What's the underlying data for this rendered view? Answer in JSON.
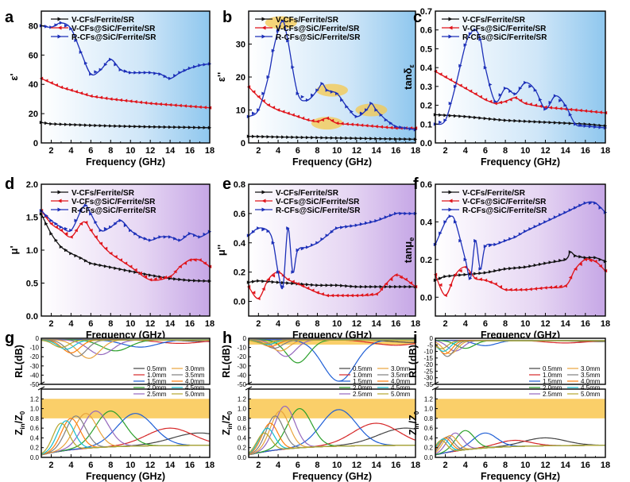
{
  "legend_sets": {
    "main": [
      "V-CFs/Ferrite/SR",
      "V-CFs@SiC/Ferrite/SR",
      "R-CFs@SiC/Ferrite/SR"
    ],
    "thickness_left": [
      "0.5mm",
      "1.0mm",
      "1.5mm",
      "2.0mm",
      "2.5mm"
    ],
    "thickness_right": [
      "3.0mm",
      "3.5mm",
      "4.0mm",
      "4.5mm",
      "5.0mm"
    ]
  },
  "colors": {
    "series": [
      "#111111",
      "#e0141b",
      "#1c2fb8"
    ],
    "thickness": [
      "#444444",
      "#d62728",
      "#1f5fd6",
      "#2ca02c",
      "#9467bd",
      "#e8a33d",
      "#7f7f7f",
      "#ff7f0e",
      "#17becf",
      "#b5a62e"
    ],
    "band": "#f9c74f"
  },
  "chart_data": [
    {
      "panel": "a",
      "type": "line",
      "xlabel": "Frequency (GHz)",
      "ylabel": "ε'",
      "xlim": [
        1,
        18
      ],
      "ylim": [
        0,
        90
      ],
      "xticks": [
        2,
        4,
        6,
        8,
        10,
        12,
        14,
        16,
        18
      ],
      "yticks": [
        0,
        20,
        40,
        60,
        80
      ],
      "background": "blue",
      "series": [
        {
          "name": "V-CFs/Ferrite/SR",
          "x": [
            1,
            2,
            4,
            6,
            8,
            10,
            12,
            14,
            16,
            18
          ],
          "y": [
            14,
            13,
            12.5,
            12,
            11.6,
            11.3,
            11,
            10.8,
            10.6,
            10.4
          ]
        },
        {
          "name": "V-CFs@SiC/Ferrite/SR",
          "x": [
            1,
            2,
            3,
            4,
            5,
            6,
            8,
            10,
            12,
            14,
            16,
            18
          ],
          "y": [
            44,
            41,
            38,
            36,
            34,
            32,
            30,
            28.5,
            27,
            26,
            25,
            24
          ]
        },
        {
          "name": "R-CFs@SiC/Ferrite/SR",
          "x": [
            1,
            2,
            3,
            4,
            5,
            6,
            7,
            8,
            9,
            10,
            11,
            12,
            13,
            14,
            15,
            16,
            17,
            18
          ],
          "y": [
            80,
            79,
            82,
            78,
            62,
            47,
            50,
            57,
            50,
            48,
            48,
            48,
            47,
            44,
            48,
            51,
            53,
            54
          ]
        }
      ]
    },
    {
      "panel": "b",
      "type": "line",
      "xlabel": "Frequency (GHz)",
      "ylabel": "ε''",
      "xlim": [
        1,
        18
      ],
      "ylim": [
        0,
        40
      ],
      "xticks": [
        2,
        4,
        6,
        8,
        10,
        12,
        14,
        16,
        18
      ],
      "yticks": [
        0,
        10,
        20,
        30
      ],
      "background": "blue",
      "series": [
        {
          "name": "V-CFs/Ferrite/SR",
          "x": [
            1,
            4,
            8,
            12,
            16,
            18
          ],
          "y": [
            2,
            1.8,
            1.6,
            1.4,
            1.2,
            1.1
          ]
        },
        {
          "name": "V-CFs@SiC/Ferrite/SR",
          "x": [
            1,
            2,
            3,
            4,
            5,
            6,
            7,
            8,
            9,
            10,
            12,
            14,
            16,
            18
          ],
          "y": [
            17,
            14,
            11.5,
            10,
            9,
            8,
            7,
            6.5,
            7.5,
            6,
            5.5,
            5,
            4.5,
            4.5
          ]
        },
        {
          "name": "R-CFs@SiC/Ferrite/SR",
          "x": [
            1,
            2,
            3,
            3.5,
            4,
            4.5,
            5,
            6,
            7,
            8,
            8.5,
            9,
            10,
            11,
            12,
            13,
            13.5,
            14,
            15,
            16,
            17,
            18
          ],
          "y": [
            8,
            10,
            20,
            28,
            34,
            37,
            31,
            15,
            13,
            16,
            18,
            16,
            15,
            11,
            8,
            10,
            12,
            10,
            7,
            5,
            4.5,
            4
          ]
        }
      ],
      "highlights": [
        [
          4.3,
          36.5
        ],
        [
          9.5,
          16
        ],
        [
          13.5,
          10
        ],
        [
          9,
          6
        ]
      ]
    },
    {
      "panel": "c",
      "type": "line",
      "xlabel": "Frequency (GHz)",
      "ylabel": "tanδε",
      "xlim": [
        1,
        18
      ],
      "ylim": [
        0,
        0.7
      ],
      "xticks": [
        2,
        4,
        6,
        8,
        10,
        12,
        14,
        16,
        18
      ],
      "yticks": [
        0,
        0.1,
        0.2,
        0.3,
        0.4,
        0.5,
        0.6,
        0.7
      ],
      "background": "blue",
      "series": [
        {
          "name": "V-CFs/Ferrite/SR",
          "x": [
            1,
            4,
            8,
            12,
            16,
            18
          ],
          "y": [
            0.15,
            0.14,
            0.12,
            0.11,
            0.1,
            0.09
          ]
        },
        {
          "name": "V-CFs@SiC/Ferrite/SR",
          "x": [
            1,
            2,
            3,
            4,
            5,
            6,
            7,
            8,
            9,
            10,
            12,
            14,
            16,
            18
          ],
          "y": [
            0.38,
            0.35,
            0.32,
            0.29,
            0.26,
            0.23,
            0.21,
            0.22,
            0.24,
            0.21,
            0.19,
            0.18,
            0.17,
            0.16
          ]
        },
        {
          "name": "R-CFs@SiC/Ferrite/SR",
          "x": [
            1,
            2,
            3,
            4,
            4.5,
            5,
            5.5,
            6,
            7,
            8,
            9,
            10,
            11,
            12,
            13,
            14,
            15,
            16,
            18
          ],
          "y": [
            0.1,
            0.12,
            0.3,
            0.52,
            0.58,
            0.6,
            0.55,
            0.4,
            0.22,
            0.29,
            0.26,
            0.32,
            0.28,
            0.18,
            0.25,
            0.2,
            0.1,
            0.09,
            0.08
          ]
        }
      ]
    },
    {
      "panel": "d",
      "type": "line",
      "xlabel": "Frequency (GHz)",
      "ylabel": "μ'",
      "xlim": [
        1,
        18
      ],
      "ylim": [
        0,
        2
      ],
      "xticks": [
        2,
        4,
        6,
        8,
        10,
        12,
        14,
        16,
        18
      ],
      "yticks": [
        0,
        0.5,
        1,
        1.5,
        2
      ],
      "background": "purple",
      "series": [
        {
          "name": "V-CFs/Ferrite/SR",
          "x": [
            1,
            2,
            3,
            4,
            5,
            6,
            8,
            10,
            12,
            14,
            16,
            18
          ],
          "y": [
            1.55,
            1.25,
            1.05,
            0.95,
            0.88,
            0.8,
            0.74,
            0.68,
            0.62,
            0.57,
            0.54,
            0.53
          ]
        },
        {
          "name": "V-CFs@SiC/Ferrite/SR",
          "x": [
            1,
            2,
            3,
            4,
            5,
            5.5,
            6,
            7,
            8,
            10,
            12,
            14,
            15,
            16,
            17,
            18
          ],
          "y": [
            1.6,
            1.4,
            1.3,
            1.2,
            1.4,
            1.42,
            1.3,
            1.1,
            0.95,
            0.75,
            0.55,
            0.6,
            0.75,
            0.85,
            0.85,
            0.75
          ]
        },
        {
          "name": "R-CFs@SiC/Ferrite/SR",
          "x": [
            1,
            2,
            3,
            4,
            5,
            5.5,
            6,
            7,
            8,
            9,
            10,
            11,
            12,
            13,
            14,
            15,
            16,
            17,
            18
          ],
          "y": [
            1.6,
            1.45,
            1.35,
            1.3,
            1.6,
            1.68,
            1.55,
            1.3,
            1.35,
            1.45,
            1.3,
            1.2,
            1.15,
            1.2,
            1.2,
            1.15,
            1.25,
            1.2,
            1.28
          ]
        }
      ]
    },
    {
      "panel": "e",
      "type": "line",
      "xlabel": "Frequency (GHz)",
      "ylabel": "μ''",
      "xlim": [
        1,
        18
      ],
      "ylim": [
        -0.1,
        0.8
      ],
      "xticks": [
        2,
        4,
        6,
        8,
        10,
        12,
        14,
        16,
        18
      ],
      "yticks": [
        0,
        0.2,
        0.4,
        0.6,
        0.8
      ],
      "background": "purple",
      "series": [
        {
          "name": "V-CFs/Ferrite/SR",
          "x": [
            1,
            2,
            4,
            6,
            8,
            10,
            12,
            14,
            16,
            18
          ],
          "y": [
            0.13,
            0.14,
            0.13,
            0.12,
            0.11,
            0.11,
            0.1,
            0.1,
            0.1,
            0.1
          ]
        },
        {
          "name": "V-CFs@SiC/Ferrite/SR",
          "x": [
            1,
            2,
            3,
            4,
            5,
            6,
            7,
            8,
            9,
            10,
            12,
            14,
            15,
            16,
            17,
            18
          ],
          "y": [
            0.1,
            0.02,
            0.15,
            0.2,
            0.15,
            0.12,
            0.09,
            0.06,
            0.04,
            0.04,
            0.04,
            0.05,
            0.12,
            0.18,
            0.15,
            0.1
          ]
        },
        {
          "name": "R-CFs@SiC/Ferrite/SR",
          "x": [
            1,
            2,
            3,
            3.5,
            4,
            4.5,
            5,
            5.5,
            6,
            7,
            8,
            9,
            10,
            12,
            14,
            16,
            17,
            18
          ],
          "y": [
            0.45,
            0.5,
            0.48,
            0.4,
            0.2,
            0.1,
            0.5,
            0.2,
            0.35,
            0.37,
            0.4,
            0.45,
            0.5,
            0.52,
            0.55,
            0.6,
            0.6,
            0.6
          ]
        }
      ]
    },
    {
      "panel": "f",
      "type": "line",
      "xlabel": "Frequency (GHz)",
      "ylabel": "tanδμ",
      "xlim": [
        1,
        18
      ],
      "ylim": [
        -0.1,
        0.6
      ],
      "xticks": [
        2,
        4,
        6,
        8,
        10,
        12,
        14,
        16,
        18
      ],
      "yticks": [
        0,
        0.2,
        0.4,
        0.6
      ],
      "background": "purple",
      "series": [
        {
          "name": "V-CFs/Ferrite/SR",
          "x": [
            1,
            2,
            4,
            6,
            8,
            10,
            12,
            14,
            14.5,
            15,
            16,
            17,
            18
          ],
          "y": [
            0.09,
            0.11,
            0.12,
            0.13,
            0.15,
            0.16,
            0.18,
            0.2,
            0.24,
            0.22,
            0.21,
            0.21,
            0.19
          ]
        },
        {
          "name": "V-CFs@SiC/Ferrite/SR",
          "x": [
            1,
            2,
            3,
            4,
            5,
            6,
            7,
            8,
            10,
            12,
            14,
            15,
            16,
            17,
            18
          ],
          "y": [
            0.12,
            0.01,
            0.12,
            0.16,
            0.1,
            0.09,
            0.07,
            0.04,
            0.04,
            0.05,
            0.06,
            0.15,
            0.2,
            0.19,
            0.14
          ]
        },
        {
          "name": "R-CFs@SiC/Ferrite/SR",
          "x": [
            1,
            2,
            2.5,
            3,
            4,
            4.5,
            5,
            5.5,
            6,
            7,
            8,
            9,
            10,
            12,
            14,
            16,
            17,
            18
          ],
          "y": [
            0.28,
            0.4,
            0.43,
            0.4,
            0.2,
            0.1,
            0.3,
            0.15,
            0.27,
            0.28,
            0.3,
            0.32,
            0.35,
            0.4,
            0.45,
            0.5,
            0.5,
            0.45
          ]
        }
      ]
    },
    {
      "panel": "g",
      "type": "line",
      "xlabel": "Frequency (GHz)",
      "ylabel_top": "RL(dB)",
      "ylabel_bottom": "Zin/Z0",
      "xlim": [
        1,
        18
      ],
      "rl_ylim": [
        -50,
        0
      ],
      "rl_yticks": [
        0,
        -10,
        -20,
        -30,
        -40,
        -50
      ],
      "z_ylim": [
        0,
        1.4
      ],
      "z_yticks": [
        0,
        0.2,
        0.4,
        0.6,
        0.8,
        1.0,
        1.2
      ],
      "xticks": [
        2,
        4,
        6,
        8,
        10,
        12,
        14,
        16,
        18
      ],
      "band": [
        0.8,
        1.2
      ],
      "rl_dips": [
        [
          18,
          -2
        ],
        [
          15,
          -4
        ],
        [
          11,
          -8
        ],
        [
          8.5,
          -12
        ],
        [
          7,
          -16
        ],
        [
          5.8,
          -20
        ],
        [
          4.6,
          -18
        ],
        [
          4,
          -14
        ],
        [
          3.5,
          -10
        ],
        [
          3,
          -8
        ]
      ],
      "z_peaks": [
        [
          17,
          0.5
        ],
        [
          14,
          0.6
        ],
        [
          10.5,
          0.9
        ],
        [
          8,
          0.95
        ],
        [
          6.5,
          0.95
        ],
        [
          5.5,
          0.9
        ],
        [
          4.5,
          0.85
        ],
        [
          4,
          0.8
        ],
        [
          3.5,
          0.75
        ],
        [
          3,
          0.7
        ]
      ]
    },
    {
      "panel": "h",
      "type": "line",
      "xlabel": "Frequency (GHz)",
      "ylabel_top": "RL(dB)",
      "ylabel_bottom": "Zin/Z0",
      "xlim": [
        1,
        18
      ],
      "rl_ylim": [
        -50,
        0
      ],
      "rl_yticks": [
        0,
        -10,
        -20,
        -30,
        -40,
        -50
      ],
      "z_ylim": [
        0,
        1.4
      ],
      "z_yticks": [
        0,
        0.2,
        0.4,
        0.6,
        0.8,
        1.0,
        1.2
      ],
      "xticks": [
        2,
        4,
        6,
        8,
        10,
        12,
        14,
        16,
        18
      ],
      "band": [
        0.8,
        1.2
      ],
      "rl_dips": [
        [
          18,
          -3
        ],
        [
          16,
          -6
        ],
        [
          10.2,
          -45
        ],
        [
          6,
          -25
        ],
        [
          4.8,
          -18
        ],
        [
          4.2,
          -12
        ],
        [
          3.6,
          -9
        ],
        [
          3.2,
          -7
        ],
        [
          2.9,
          -5
        ],
        [
          2.6,
          -4
        ]
      ],
      "z_peaks": [
        [
          17,
          0.6
        ],
        [
          14,
          0.7
        ],
        [
          10.2,
          0.98
        ],
        [
          6.2,
          1.0
        ],
        [
          4.7,
          1.05
        ],
        [
          4.2,
          0.95
        ],
        [
          3.7,
          0.85
        ],
        [
          3.2,
          0.7
        ],
        [
          2.9,
          0.6
        ],
        [
          2.6,
          0.5
        ]
      ]
    },
    {
      "panel": "i",
      "type": "line",
      "xlabel": "Frequency (GHz)",
      "ylabel_top": "RL(dB)",
      "ylabel_bottom": "Zin/Z0",
      "xlim": [
        1,
        18
      ],
      "rl_ylim": [
        -35,
        0
      ],
      "rl_yticks": [
        0,
        -5,
        -10,
        -15,
        -20,
        -25,
        -30,
        -35
      ],
      "z_ylim": [
        0,
        1.4
      ],
      "z_yticks": [
        0,
        0.2,
        0.4,
        0.6,
        0.8,
        1.0,
        1.2
      ],
      "xticks": [
        2,
        4,
        6,
        8,
        10,
        12,
        14,
        16,
        18
      ],
      "band": [
        0.8,
        1.2
      ],
      "rl_dips": [
        [
          17,
          -1
        ],
        [
          14,
          -2
        ],
        [
          6,
          -4
        ],
        [
          4,
          -6
        ],
        [
          3,
          -8
        ],
        [
          2.5,
          -10
        ],
        [
          2.2,
          -12
        ],
        [
          2,
          -10
        ],
        [
          1.8,
          -8
        ],
        [
          1.6,
          -6
        ]
      ],
      "z_peaks": [
        [
          12,
          0.4
        ],
        [
          9,
          0.35
        ],
        [
          6,
          0.5
        ],
        [
          4,
          0.55
        ],
        [
          3,
          0.5
        ],
        [
          2.5,
          0.45
        ],
        [
          2.2,
          0.42
        ],
        [
          2,
          0.4
        ],
        [
          1.8,
          0.38
        ],
        [
          1.6,
          0.35
        ]
      ]
    }
  ]
}
